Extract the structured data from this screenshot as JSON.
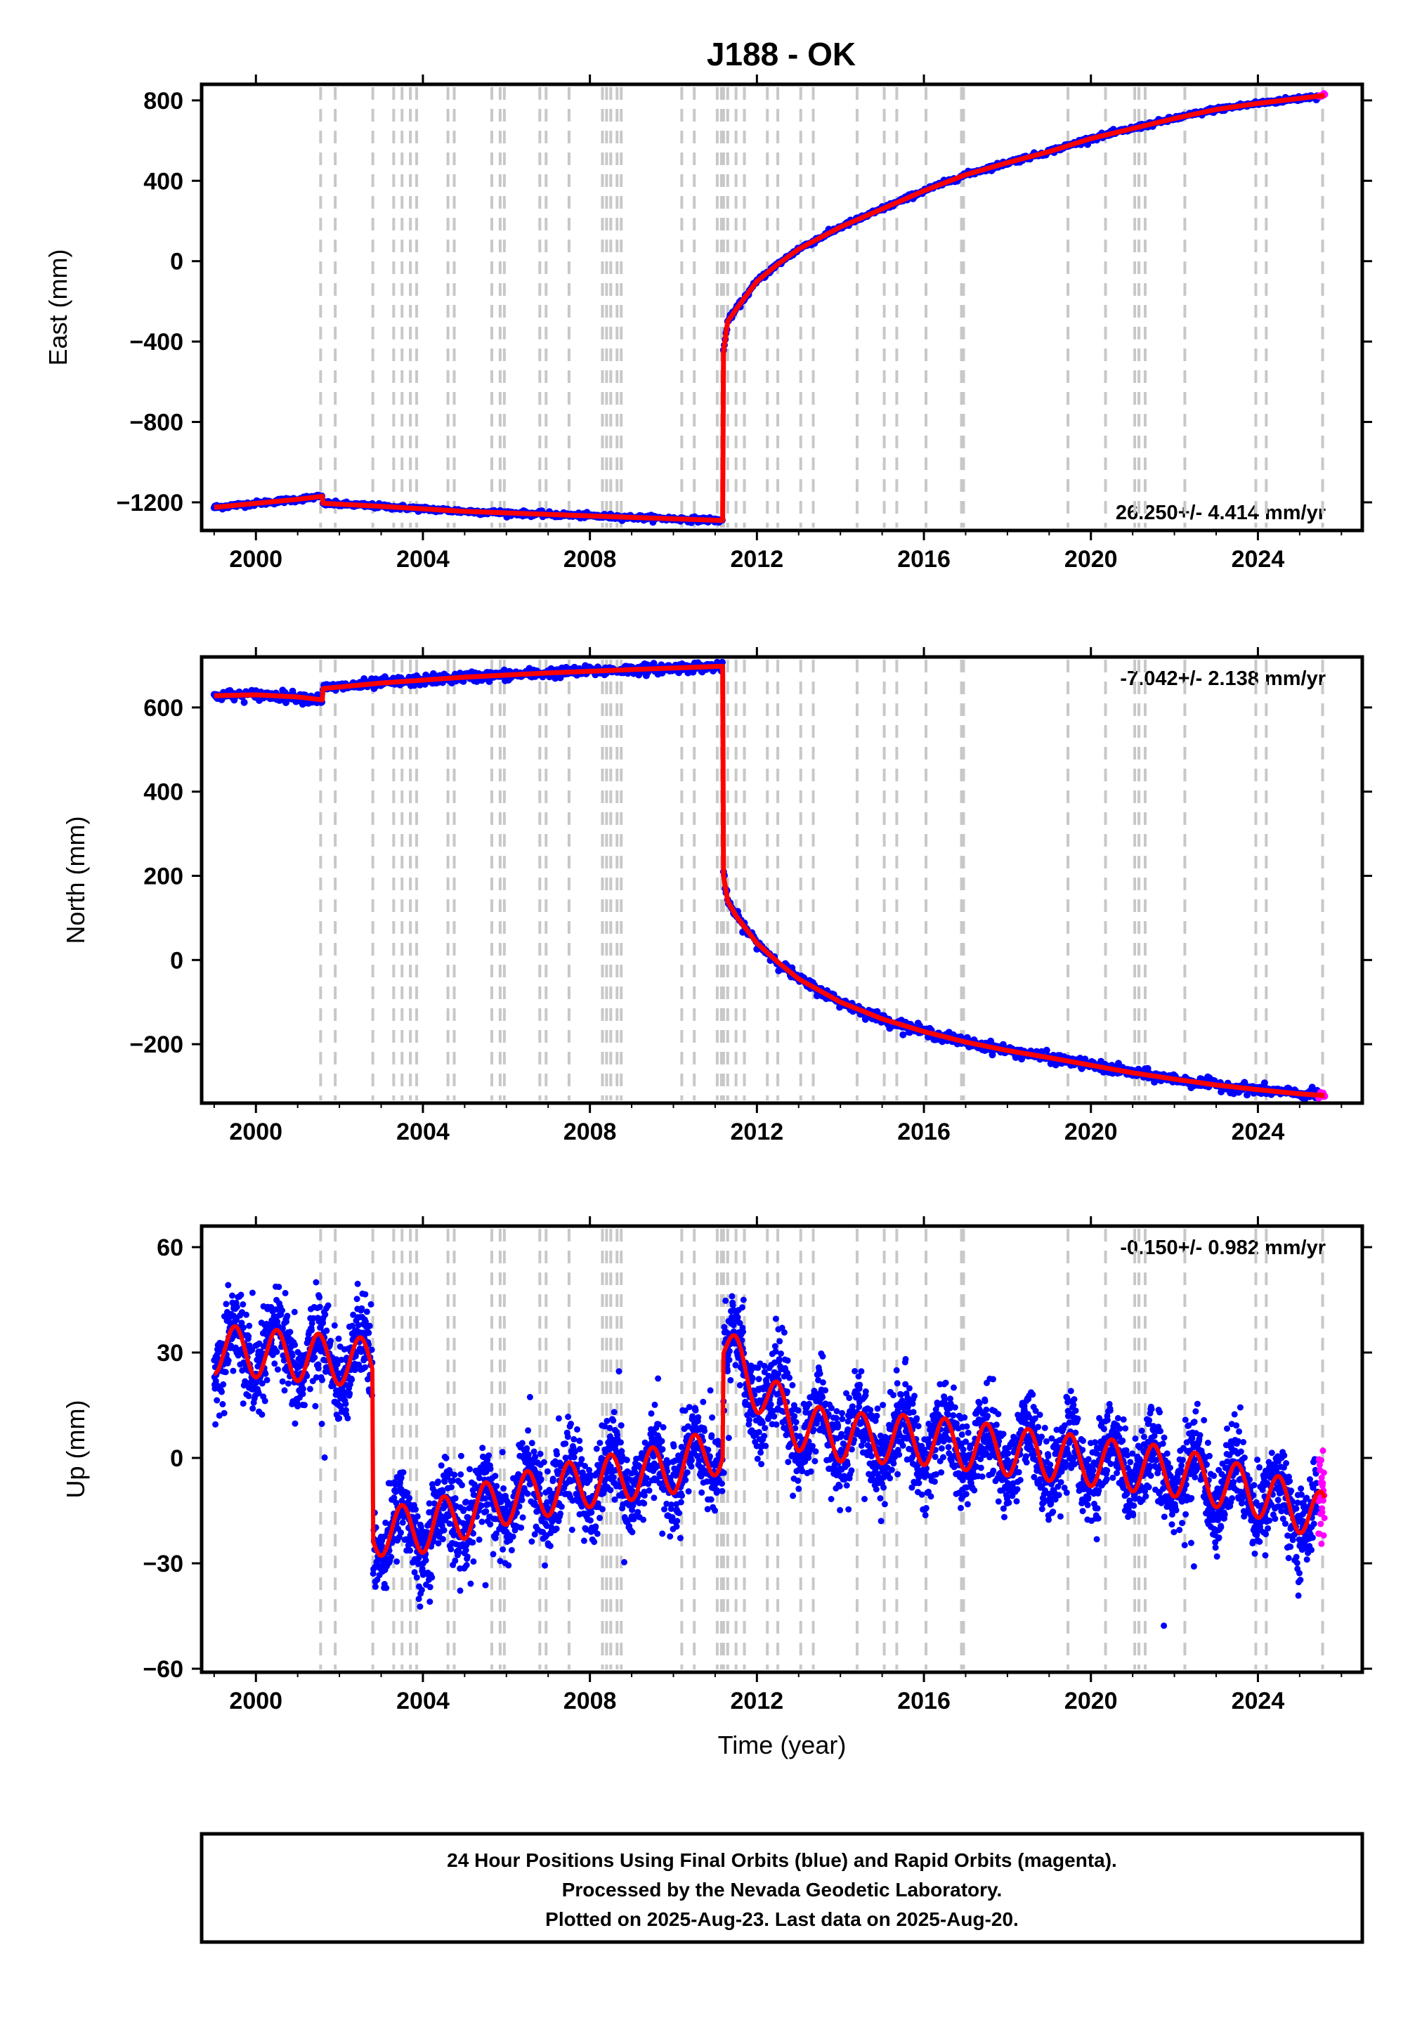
{
  "figure": {
    "title": "J188 - OK",
    "footer": [
      "24 Hour Positions Using Final Orbits (blue) and Rapid Orbits (magenta).",
      "Processed by the Nevada Geodetic Laboratory.",
      "Plotted on 2025-Aug-23. Last data on 2025-Aug-20."
    ],
    "colors": {
      "final_orbits": "#0000ff",
      "rapid_orbits": "#ff00ff",
      "model_fit": "#ff0000",
      "event_lines": "#c8c8c8"
    }
  },
  "chart_data": [
    {
      "type": "scatter",
      "panel": "east",
      "ylabel": "East (mm)",
      "xlabel": "",
      "xlim": [
        1998.7,
        2026.5
      ],
      "ylim": [
        -1340,
        880
      ],
      "yticks": [
        800,
        400,
        0,
        -400,
        -800,
        -1200
      ],
      "xticks": [
        2000,
        2004,
        2008,
        2012,
        2016,
        2020,
        2024
      ],
      "rate_text": "26.250+/- 4.414 mm/yr",
      "rate_position": "bottom-right",
      "breaks": [
        2001.6,
        2011.19
      ],
      "series": [
        {
          "role": "model",
          "x": [
            1999.0,
            2000.0,
            2001.0,
            2001.59
          ],
          "y": [
            -1225,
            -1205,
            -1185,
            -1170
          ]
        },
        {
          "role": "model",
          "x": [
            2001.61,
            2003.0,
            2005.0,
            2007.0,
            2009.0,
            2011.18
          ],
          "y": [
            -1205,
            -1220,
            -1245,
            -1260,
            -1275,
            -1290
          ]
        },
        {
          "role": "model",
          "x": [
            2011.2,
            2011.3,
            2011.5,
            2012.0,
            2012.5,
            2013.0,
            2014.0,
            2015.0,
            2016.0,
            2017.0,
            2018.0,
            2019.0,
            2020.0,
            2021.0,
            2022.0,
            2023.0,
            2024.0,
            2025.0,
            2025.6
          ],
          "y": [
            -450,
            -300,
            -240,
            -100,
            -15,
            60,
            170,
            260,
            350,
            430,
            490,
            545,
            610,
            660,
            710,
            755,
            785,
            810,
            825
          ]
        }
      ]
    },
    {
      "type": "scatter",
      "panel": "north",
      "ylabel": "North (mm)",
      "xlabel": "",
      "xlim": [
        1998.7,
        2026.5
      ],
      "ylim": [
        -340,
        720
      ],
      "yticks": [
        600,
        400,
        200,
        0,
        -200
      ],
      "xticks": [
        2000,
        2004,
        2008,
        2012,
        2016,
        2020,
        2024
      ],
      "rate_text": "-7.042+/- 2.138 mm/yr",
      "rate_position": "top-right",
      "breaks": [
        2001.6,
        2011.19
      ],
      "series": [
        {
          "role": "model",
          "x": [
            1999.0,
            2000.0,
            2001.0,
            2001.59
          ],
          "y": [
            628,
            630,
            625,
            618
          ]
        },
        {
          "role": "model",
          "x": [
            2001.61,
            2003.0,
            2005.0,
            2007.0,
            2009.0,
            2011.18
          ],
          "y": [
            645,
            658,
            672,
            682,
            690,
            698
          ]
        },
        {
          "role": "model",
          "x": [
            2011.2,
            2011.3,
            2011.5,
            2012.0,
            2012.5,
            2013.0,
            2014.0,
            2015.0,
            2016.0,
            2017.0,
            2018.0,
            2019.0,
            2020.0,
            2021.0,
            2022.0,
            2023.0,
            2024.0,
            2025.0,
            2025.6
          ],
          "y": [
            200,
            140,
            105,
            40,
            -5,
            -45,
            -100,
            -140,
            -170,
            -195,
            -215,
            -232,
            -250,
            -268,
            -283,
            -297,
            -308,
            -318,
            -322
          ]
        }
      ]
    },
    {
      "type": "scatter",
      "panel": "up",
      "ylabel": "Up (mm)",
      "xlabel": "Time (year)",
      "xlim": [
        1998.7,
        2026.5
      ],
      "ylim": [
        -61,
        66
      ],
      "yticks": [
        60,
        30,
        0,
        -30,
        -60
      ],
      "xticks": [
        2000,
        2004,
        2008,
        2012,
        2016,
        2020,
        2024
      ],
      "rate_text": "-0.150+/- 0.982 mm/yr",
      "rate_position": "top-right",
      "breaks": [
        2002.8,
        2011.19
      ],
      "seasonal_amplitude_mm": 7,
      "scatter_sd_mm": 6,
      "series": [
        {
          "role": "model_trend",
          "x": [
            1999.0,
            2002.79
          ],
          "y": [
            31,
            27
          ]
        },
        {
          "role": "model_trend",
          "x": [
            2002.81,
            2004.0,
            2006.0,
            2008.0,
            2010.0,
            2011.18
          ],
          "y": [
            -21,
            -20,
            -12,
            -7,
            -3,
            3
          ]
        },
        {
          "role": "model_trend",
          "x": [
            2011.2,
            2012.0,
            2013.0,
            2014.0,
            2016.0,
            2018.0,
            2020.0,
            2022.0,
            2024.0,
            2025.6
          ],
          "y": [
            32,
            20,
            9,
            6,
            5,
            2,
            -1,
            -4,
            -10,
            -17
          ]
        }
      ]
    }
  ],
  "event_lines_years": [
    2001.55,
    2001.9,
    2002.8,
    2003.3,
    2003.5,
    2003.7,
    2003.85,
    2004.6,
    2004.75,
    2005.65,
    2005.85,
    2005.95,
    2006.8,
    2006.95,
    2007.5,
    2008.3,
    2008.4,
    2008.5,
    2008.65,
    2008.75,
    2010.2,
    2010.5,
    2011.05,
    2011.15,
    2011.2,
    2011.3,
    2011.5,
    2011.7,
    2012.25,
    2012.5,
    2013.05,
    2013.35,
    2014.4,
    2015.05,
    2015.35,
    2016.05,
    2016.9,
    2016.95,
    2019.45,
    2020.35,
    2021.05,
    2021.15,
    2021.3,
    2022.25,
    2023.95,
    2024.2,
    2025.55
  ]
}
